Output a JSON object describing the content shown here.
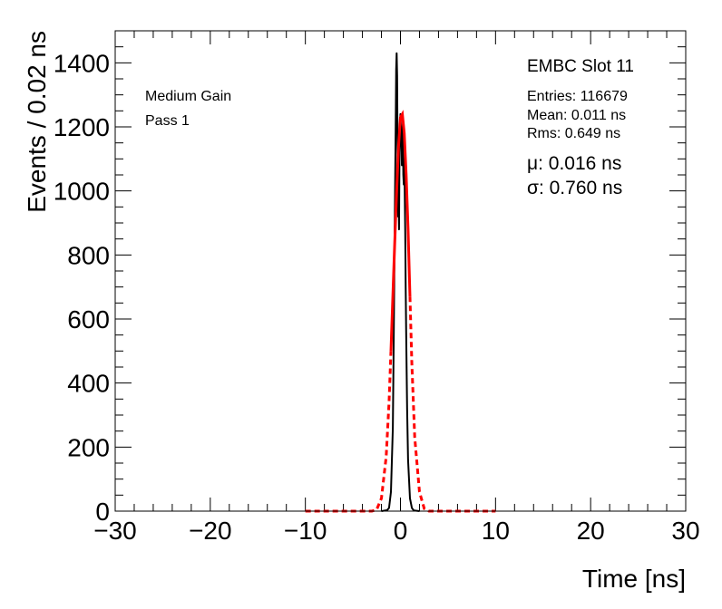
{
  "chart_data": {
    "type": "line",
    "xlabel": "Time [ns]",
    "ylabel": "Events / 0.02 ns",
    "xlim": [
      -30,
      30
    ],
    "ylim": [
      0,
      1500
    ],
    "x_ticks": [
      -30,
      -20,
      -10,
      0,
      10,
      20,
      30
    ],
    "x_tick_labels": [
      "−30",
      "−20",
      "−10",
      "0",
      "10",
      "20",
      "30"
    ],
    "y_ticks": [
      0,
      200,
      400,
      600,
      800,
      1000,
      1200,
      1400
    ],
    "y_tick_labels": [
      "0",
      "200",
      "400",
      "600",
      "800",
      "1000",
      "1200",
      "1400"
    ],
    "grid": false,
    "series": [
      {
        "color": "#000000",
        "style": "histogram",
        "x": [
          -2.0,
          -1.4,
          -1.2,
          -1.0,
          -0.8,
          -0.7,
          -0.6,
          -0.5,
          -0.45,
          -0.4,
          -0.35,
          -0.3,
          -0.25,
          -0.2,
          -0.15,
          -0.1,
          -0.05,
          0.0,
          0.05,
          0.1,
          0.15,
          0.2,
          0.25,
          0.3,
          0.35,
          0.4,
          0.45,
          0.5,
          0.55,
          0.6,
          0.7,
          0.8,
          1.0,
          1.2,
          1.4,
          2.0
        ],
        "values": [
          0,
          3,
          10,
          60,
          260,
          560,
          900,
          1200,
          1380,
          1430,
          1360,
          1100,
          920,
          1000,
          880,
          1120,
          1180,
          1240,
          1200,
          1150,
          1080,
          1160,
          1210,
          1050,
          1020,
          1100,
          1000,
          880,
          700,
          560,
          320,
          160,
          40,
          10,
          2,
          0
        ]
      },
      {
        "color": "#ff0000",
        "style": "fit",
        "fit_range": [
          -1.0,
          1.0
        ],
        "x": [
          -10,
          -3.0,
          -2.5,
          -2.0,
          -1.5,
          -1.2,
          -1.0,
          -0.8,
          -0.6,
          -0.4,
          -0.2,
          0.0,
          0.2,
          0.4,
          0.6,
          0.8,
          1.0,
          1.2,
          1.5,
          2.0,
          2.5,
          3.0,
          10
        ],
        "values": [
          0,
          0,
          5,
          40,
          170,
          340,
          500,
          670,
          840,
          1000,
          1140,
          1230,
          1240,
          1180,
          1050,
          880,
          670,
          460,
          230,
          60,
          8,
          0,
          0
        ]
      }
    ]
  },
  "labels": {
    "detector": "EMBC Slot 11",
    "gain": "Medium Gain",
    "pass": "Pass 1",
    "entries": "Entries: 116679",
    "mean": "Mean: 0.011 ns",
    "rms": "Rms: 0.649 ns",
    "mu": "μ: 0.016 ns",
    "sigma": "σ: 0.760 ns"
  }
}
